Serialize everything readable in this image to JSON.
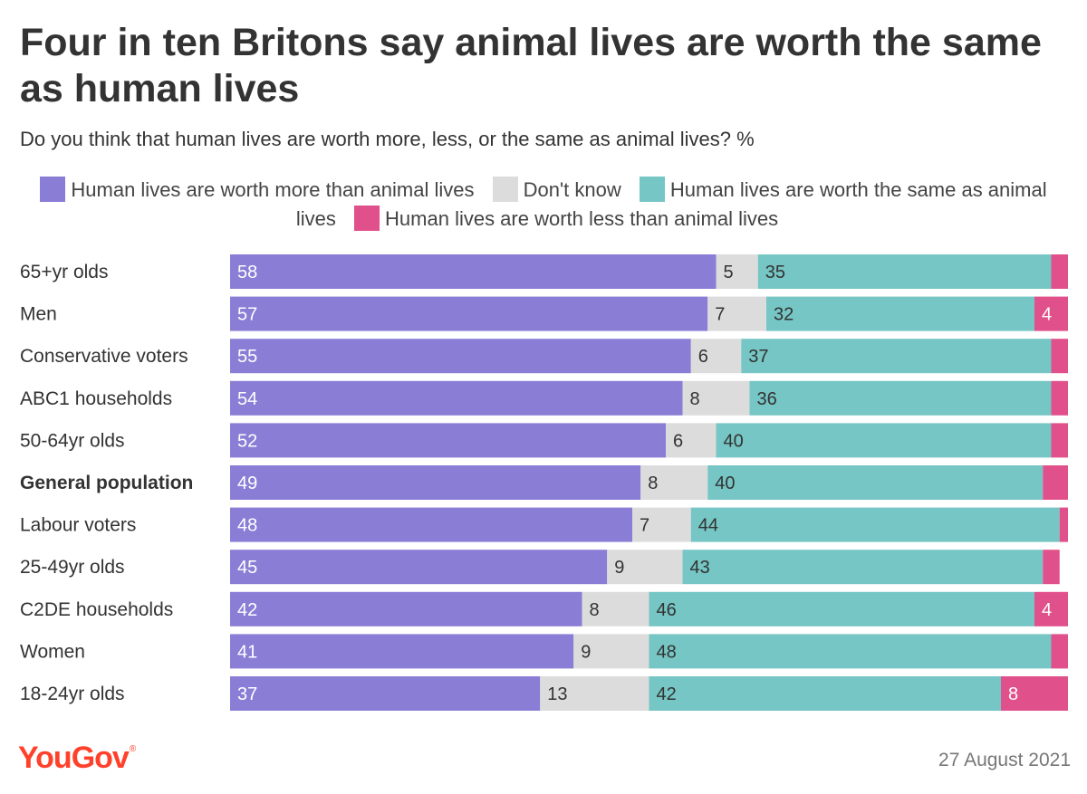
{
  "chart_data": {
    "type": "bar",
    "orientation": "horizontal",
    "stacked": true,
    "title": "Four in ten Britons say animal lives are worth the same as human lives",
    "subtitle": "Do you think that human lives are worth more, less, or the same as animal lives? %",
    "categories": [
      "65+yr olds",
      "Men",
      "Conservative voters",
      "ABC1 households",
      "50-64yr olds",
      "General population",
      "Labour voters",
      "25-49yr olds",
      "C2DE households",
      "Women",
      "18-24yr olds"
    ],
    "highlight_category": "General population",
    "series": [
      {
        "name": "Human lives are worth more than animal lives",
        "color": "#8a7dd6",
        "label_color": "#ffffff",
        "values": [
          58,
          57,
          55,
          54,
          52,
          49,
          48,
          45,
          42,
          41,
          37
        ]
      },
      {
        "name": "Don't know",
        "color": "#dcdcdc",
        "label_color": "#333333",
        "values": [
          5,
          7,
          6,
          8,
          6,
          8,
          7,
          9,
          8,
          9,
          13
        ]
      },
      {
        "name": "Human lives are worth the same as animal lives",
        "color": "#75c6c4",
        "label_color": "#333333",
        "values": [
          35,
          32,
          37,
          36,
          40,
          40,
          44,
          43,
          46,
          48,
          42
        ]
      },
      {
        "name": "Human lives are worth less than animal lives",
        "color": "#e0508a",
        "label_color": "#ffffff",
        "values": [
          2,
          4,
          2,
          2,
          2,
          3,
          1,
          2,
          4,
          2,
          8
        ]
      }
    ],
    "value_labels_shown": [
      [
        true,
        true,
        true,
        true,
        true,
        true,
        true,
        true,
        true,
        true,
        true
      ],
      [
        true,
        true,
        true,
        true,
        true,
        true,
        true,
        true,
        true,
        true,
        true
      ],
      [
        true,
        true,
        true,
        true,
        true,
        true,
        true,
        true,
        true,
        true,
        true
      ],
      [
        false,
        true,
        false,
        false,
        false,
        false,
        false,
        false,
        true,
        false,
        true
      ]
    ],
    "xlim": [
      0,
      100
    ],
    "legend_position": "top"
  },
  "footer": {
    "brand": "YouGov",
    "trademark": "®",
    "date": "27 August 2021"
  }
}
